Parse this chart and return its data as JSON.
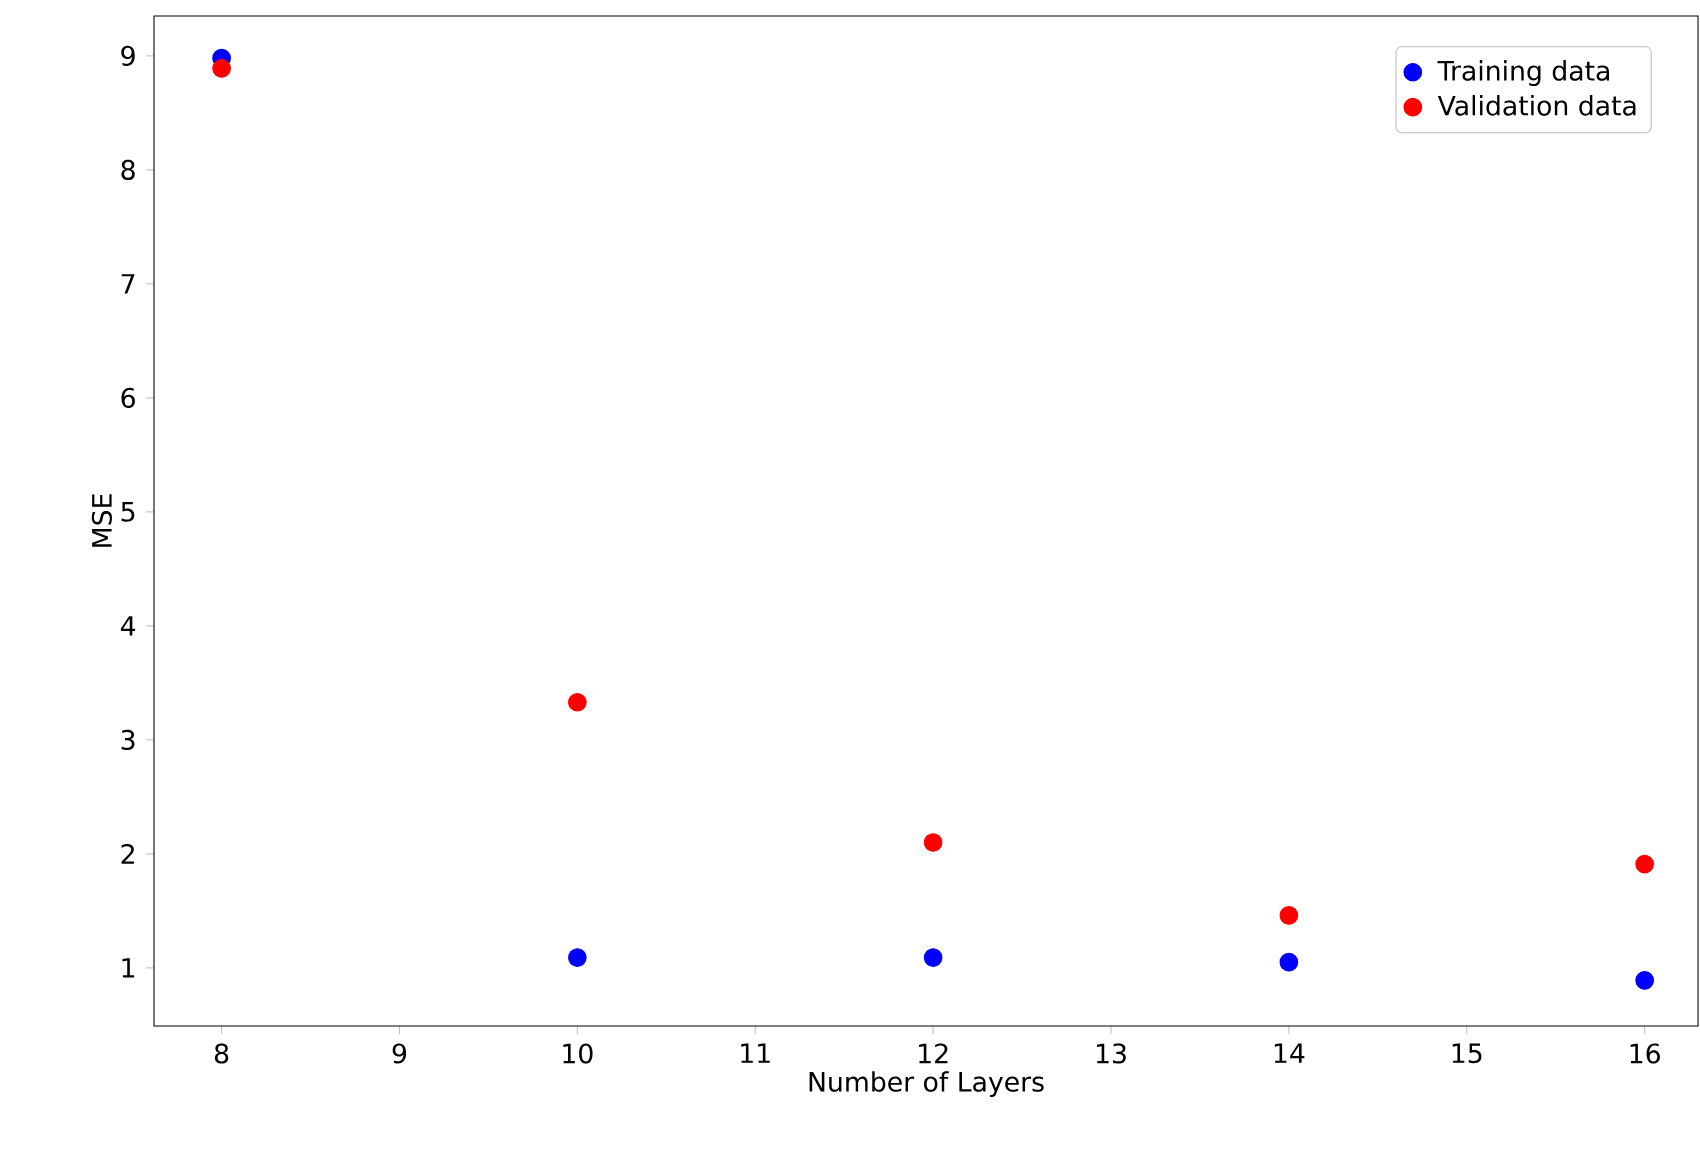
{
  "chart_data": {
    "type": "scatter",
    "xlabel": "Number of Layers",
    "ylabel": "MSE",
    "x": [
      8,
      10,
      12,
      14,
      16
    ],
    "series": [
      {
        "name": "Training data",
        "color": "#0000ff",
        "values": [
          8.98,
          1.09,
          1.09,
          1.05,
          0.89
        ]
      },
      {
        "name": "Validation data",
        "color": "#ff0000",
        "values": [
          8.89,
          3.33,
          2.1,
          1.46,
          1.91
        ]
      }
    ],
    "xlim": [
      7.62,
      16.3
    ],
    "ylim": [
      0.49,
      9.35
    ],
    "xticks": [
      8,
      9,
      10,
      11,
      12,
      13,
      14,
      15,
      16
    ],
    "yticks": [
      1,
      2,
      3,
      4,
      5,
      6,
      7,
      8,
      9
    ],
    "legend": "top right",
    "marker": "circle"
  }
}
